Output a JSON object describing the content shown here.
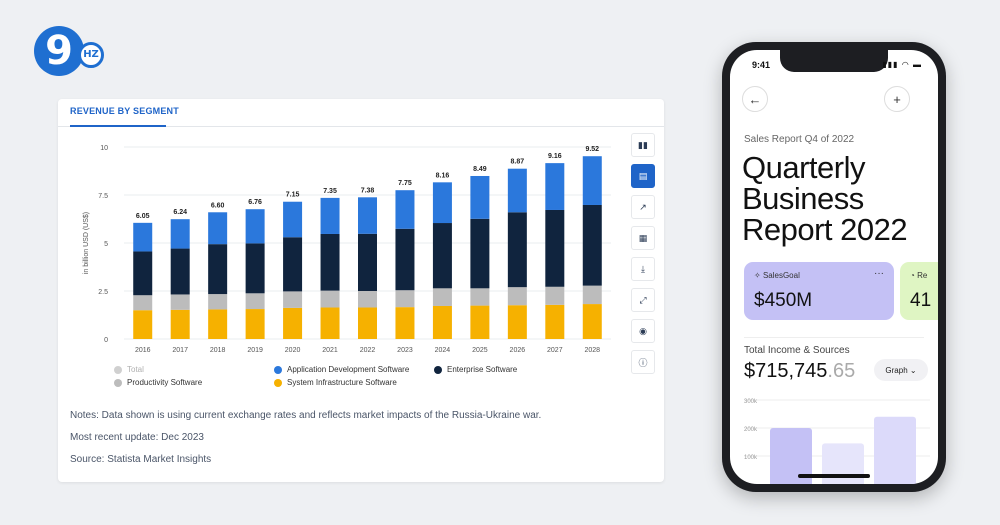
{
  "logo": {
    "main": "9",
    "badge": "HZ"
  },
  "card": {
    "title": "REVENUE BY SEGMENT",
    "tools": [
      "bar-chart-icon",
      "stacked-bar-icon",
      "trend-line-icon",
      "table-icon",
      "download-icon",
      "expand-icon",
      "hide-icon",
      "info-icon"
    ],
    "active_tool": 1,
    "notes": [
      "Notes: Data shown is using current exchange rates and reflects market impacts of the Russia-Ukraine war.",
      "Most recent update: Dec 2023",
      "Source: Statista Market Insights"
    ]
  },
  "chart_data": {
    "type": "bar",
    "stacked": true,
    "title": "",
    "xlabel": "",
    "ylabel": "in billion USD (US$)",
    "ylim": [
      0,
      10
    ],
    "yticks": [
      "0",
      "2.5",
      "5",
      "7.5",
      "10"
    ],
    "grid": true,
    "legend_position": "bottom",
    "categories": [
      "2016",
      "2017",
      "2018",
      "2019",
      "2020",
      "2021",
      "2022",
      "2023",
      "2024",
      "2025",
      "2026",
      "2027",
      "2028"
    ],
    "totals": [
      "6.05",
      "6.24",
      "6.60",
      "6.76",
      "7.15",
      "7.35",
      "7.38",
      "7.75",
      "8.16",
      "8.49",
      "8.87",
      "9.16",
      "9.52"
    ],
    "series": [
      {
        "name": "System Infrastructure Software",
        "color": "#f6b100",
        "values": [
          1.5,
          1.52,
          1.54,
          1.56,
          1.62,
          1.64,
          1.64,
          1.66,
          1.72,
          1.74,
          1.76,
          1.78,
          1.82
        ]
      },
      {
        "name": "Productivity Software",
        "color": "#bcbcbc",
        "values": [
          0.78,
          0.8,
          0.8,
          0.82,
          0.86,
          0.88,
          0.86,
          0.88,
          0.92,
          0.9,
          0.94,
          0.94,
          0.96
        ]
      },
      {
        "name": "Enterprise Software",
        "color": "#10243e",
        "values": [
          2.28,
          2.39,
          2.6,
          2.6,
          2.82,
          2.95,
          2.98,
          3.2,
          3.4,
          3.62,
          3.9,
          4.0,
          4.2
        ]
      },
      {
        "name": "Application Development Software",
        "color": "#2b78dc",
        "values": [
          1.49,
          1.53,
          1.66,
          1.78,
          1.85,
          1.88,
          1.9,
          2.01,
          2.12,
          2.23,
          2.27,
          2.44,
          2.54
        ]
      }
    ],
    "legend": [
      {
        "name": "Total",
        "color": "#d0d0d0",
        "muted": true
      },
      {
        "name": "Productivity Software",
        "color": "#bcbcbc"
      },
      {
        "name": "Application Development Software",
        "color": "#2b78dc"
      },
      {
        "name": "System Infrastructure Software",
        "color": "#f6b100"
      },
      {
        "name": "Enterprise Software",
        "color": "#10243e"
      }
    ]
  },
  "phone": {
    "time": "9:41",
    "status": "▮▮▮ ◠ ▬",
    "back_icon": "←",
    "add_icon": "+",
    "subtitle": "Sales Report Q4 of 2022",
    "title": "Quarterly Business Report 2022",
    "goal_label": "SalesGoal",
    "goal_menu": "···",
    "goal_value": "$450M",
    "goal2_label": "Re",
    "goal2_value": "41",
    "income_label": "Total Income & Sources",
    "income_value": "$715,745",
    "income_cents": ".65",
    "graph_button": "Graph",
    "graph_chevron": "⌄",
    "mini_chart": {
      "yticks": [
        "300k",
        "200k",
        "100k"
      ],
      "bars": [
        {
          "value": 200,
          "color": "#c4c1f5"
        },
        {
          "value": 145,
          "color": "#e6e5fb"
        },
        {
          "value": 240,
          "color": "#dcdafa"
        }
      ],
      "ymax": 300
    }
  }
}
